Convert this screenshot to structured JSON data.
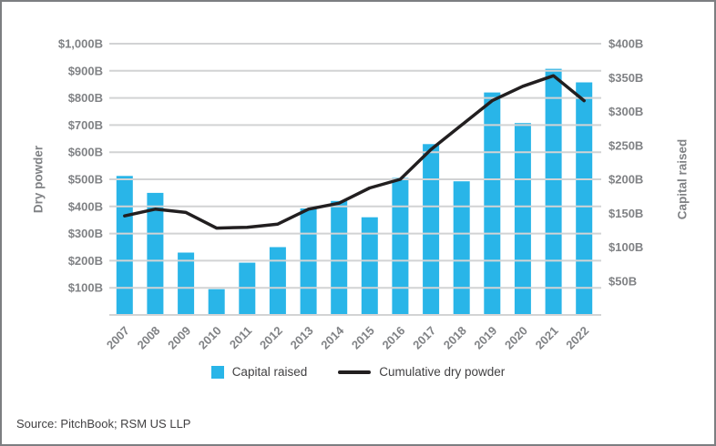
{
  "source": "Source: PitchBook; RSM US LLP",
  "legend": {
    "bar_label": "Capital raised",
    "line_label": "Cumulative dry powder"
  },
  "chart_data": {
    "type": "bar+line",
    "title": "",
    "categories": [
      "2007",
      "2008",
      "2009",
      "2010",
      "2011",
      "2012",
      "2013",
      "2014",
      "2015",
      "2016",
      "2017",
      "2018",
      "2019",
      "2020",
      "2021",
      "2022"
    ],
    "series": [
      {
        "name": "Capital raised",
        "type": "bar",
        "axis": "right",
        "color": "#29B5E8",
        "values": [
          205,
          180,
          92,
          38,
          77,
          100,
          157,
          168,
          144,
          202,
          252,
          197,
          328,
          283,
          363,
          343
        ]
      },
      {
        "name": "Cumulative dry powder",
        "type": "line",
        "axis": "left",
        "color": "#221F20",
        "values": [
          365,
          390,
          378,
          320,
          323,
          335,
          390,
          412,
          468,
          500,
          610,
          700,
          790,
          843,
          882,
          790
        ]
      }
    ],
    "left_axis": {
      "title": "Dry powder",
      "min": 0,
      "max": 1000,
      "step": 100,
      "tick_values": [
        100,
        200,
        300,
        400,
        500,
        600,
        700,
        800,
        900,
        1000
      ],
      "tick_labels": [
        "$100B",
        "$200B",
        "$300B",
        "$400B",
        "$500B",
        "$600B",
        "$700B",
        "$800B",
        "$900B",
        "$1,000B"
      ]
    },
    "right_axis": {
      "title": "Capital raised",
      "min": 0,
      "max": 400,
      "step": 50,
      "tick_values": [
        50,
        100,
        150,
        200,
        250,
        300,
        350,
        400
      ],
      "tick_labels": [
        "$50B",
        "$100B",
        "$150B",
        "$200B",
        "$250B",
        "$300B",
        "$350B",
        "$400B"
      ]
    },
    "gridlines": true,
    "gridline_color": "#d2d3d4",
    "legend_position": "bottom",
    "units": "billions USD"
  }
}
